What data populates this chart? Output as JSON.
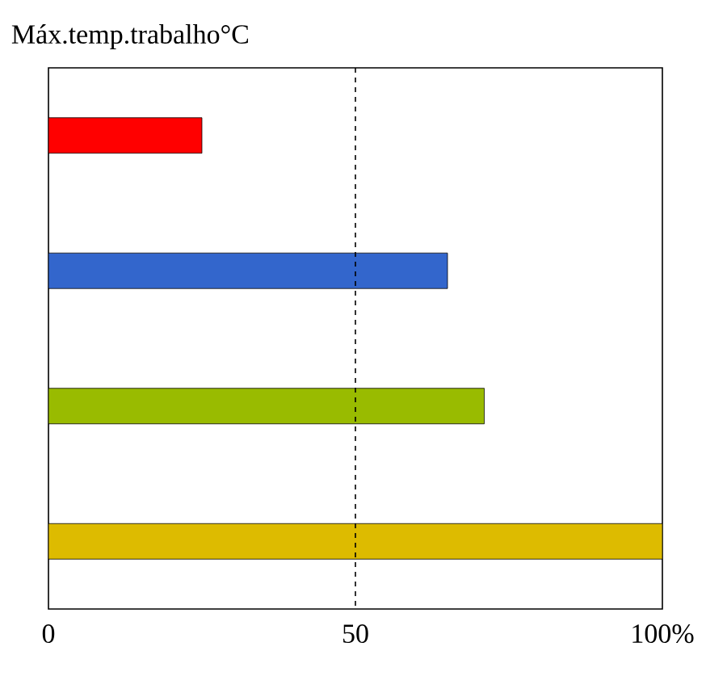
{
  "chart_data": {
    "type": "bar",
    "orientation": "horizontal",
    "title": "Máx.temp.trabalho°C",
    "categories": [
      null,
      null,
      null,
      null
    ],
    "values": [
      25,
      65,
      71,
      100
    ],
    "colors": [
      "#ff0000",
      "#3366cc",
      "#99bb00",
      "#ddbb00"
    ],
    "xlim": [
      0,
      100
    ],
    "xticks": [
      0,
      50,
      {
        "value": 100,
        "label": "100%"
      }
    ],
    "ref_lines": [
      {
        "axis": "x",
        "value": 50,
        "line_style": "dashed",
        "color": "#000000"
      }
    ]
  }
}
